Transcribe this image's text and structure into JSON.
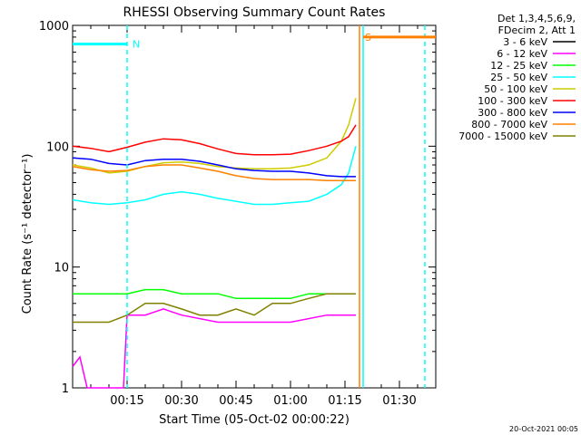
{
  "chart_data": {
    "type": "line",
    "title": "RHESSI Observing Summary Count Rates",
    "xlabel": "Start Time (05-Oct-02 00:00:22)",
    "ylabel": "Count Rate (s⁻¹ detector⁻¹)",
    "yscale": "log",
    "ylim": [
      1,
      1000
    ],
    "xlim_minutes": [
      0,
      100
    ],
    "x_ticks": [
      {
        "t": 15,
        "label": "00:15"
      },
      {
        "t": 30,
        "label": "00:30"
      },
      {
        "t": 45,
        "label": "00:45"
      },
      {
        "t": 60,
        "label": "01:00"
      },
      {
        "t": 75,
        "label": "01:15"
      },
      {
        "t": 90,
        "label": "01:30"
      }
    ],
    "y_ticks": [
      {
        "v": 1,
        "label": "1"
      },
      {
        "v": 10,
        "label": "10"
      },
      {
        "v": 100,
        "label": "100"
      },
      {
        "v": 1000,
        "label": "1000"
      }
    ],
    "legend_header": [
      "Det 1,3,4,5,6,9,",
      "FDecim 2, Att 1"
    ],
    "series": [
      {
        "name": "3 - 6 keV",
        "color": "#000000",
        "t": [
          0,
          10,
          17,
          25,
          35,
          45,
          55,
          65,
          70,
          75,
          78
        ],
        "values": [
          null,
          null,
          null,
          null,
          null,
          null,
          null,
          null,
          null,
          null,
          null
        ]
      },
      {
        "name": "6 - 12 keV",
        "color": "#ff00ff",
        "t": [
          0,
          2,
          4,
          14,
          15,
          20,
          25,
          30,
          40,
          50,
          60,
          70,
          75,
          78
        ],
        "values": [
          1.5,
          1.8,
          1,
          1,
          4,
          4,
          4.5,
          4,
          3.5,
          3.5,
          3.5,
          4,
          4,
          4
        ]
      },
      {
        "name": "12 - 25 keV",
        "color": "#00ff00",
        "t": [
          0,
          5,
          10,
          15,
          20,
          25,
          30,
          35,
          40,
          45,
          50,
          55,
          60,
          65,
          70,
          75,
          78
        ],
        "values": [
          6,
          6,
          6,
          6,
          6.5,
          6.5,
          6,
          6,
          6,
          5.5,
          5.5,
          5.5,
          5.5,
          6,
          6,
          6,
          6
        ]
      },
      {
        "name": "25 - 50 keV",
        "color": "#00ffff",
        "t": [
          0,
          5,
          10,
          15,
          20,
          25,
          30,
          35,
          40,
          45,
          50,
          55,
          60,
          65,
          70,
          74,
          76,
          78
        ],
        "values": [
          36,
          34,
          33,
          34,
          36,
          40,
          42,
          40,
          37,
          35,
          33,
          33,
          34,
          35,
          40,
          48,
          60,
          100
        ]
      },
      {
        "name": "50 - 100 keV",
        "color": "#cccc00",
        "t": [
          0,
          5,
          10,
          15,
          20,
          25,
          30,
          35,
          40,
          45,
          50,
          55,
          60,
          65,
          70,
          74,
          76,
          78
        ],
        "values": [
          70,
          66,
          60,
          62,
          68,
          73,
          74,
          72,
          68,
          66,
          65,
          65,
          66,
          70,
          80,
          110,
          150,
          250
        ]
      },
      {
        "name": "100 - 300 keV",
        "color": "#ff0000",
        "t": [
          0,
          5,
          10,
          15,
          20,
          25,
          30,
          35,
          40,
          45,
          50,
          55,
          60,
          65,
          70,
          74,
          76,
          78
        ],
        "values": [
          100,
          96,
          90,
          98,
          108,
          115,
          113,
          105,
          95,
          87,
          85,
          85,
          86,
          92,
          100,
          110,
          120,
          150
        ]
      },
      {
        "name": "300 - 800 keV",
        "color": "#0000ff",
        "t": [
          0,
          5,
          10,
          15,
          20,
          25,
          30,
          35,
          40,
          45,
          50,
          55,
          60,
          65,
          70,
          74,
          76,
          78
        ],
        "values": [
          80,
          78,
          72,
          70,
          76,
          78,
          78,
          75,
          70,
          65,
          63,
          62,
          62,
          60,
          57,
          56,
          56,
          56
        ]
      },
      {
        "name": "800 - 7000 keV",
        "color": "#ff8000",
        "t": [
          0,
          5,
          10,
          15,
          20,
          25,
          30,
          35,
          40,
          45,
          50,
          55,
          60,
          65,
          70,
          74,
          76,
          78
        ],
        "values": [
          68,
          64,
          62,
          63,
          68,
          70,
          70,
          66,
          62,
          57,
          54,
          53,
          53,
          53,
          52,
          52,
          52,
          52
        ]
      },
      {
        "name": "7000 - 15000 keV",
        "color": "#808000",
        "t": [
          0,
          5,
          10,
          15,
          20,
          25,
          30,
          35,
          40,
          45,
          50,
          55,
          60,
          65,
          70,
          75,
          78
        ],
        "values": [
          3.5,
          3.5,
          3.5,
          4,
          5,
          5,
          4.5,
          4,
          4,
          4.5,
          4,
          5,
          5,
          5.5,
          6,
          6,
          6
        ]
      }
    ],
    "annotations": [
      {
        "text": "N",
        "t": 15,
        "value": 700,
        "color": "#00ffff",
        "span": [
          0,
          15
        ]
      },
      {
        "text": "S",
        "t": 79,
        "value": 800,
        "color": "#ff8000",
        "span": [
          80,
          100
        ]
      }
    ],
    "vlines": [
      {
        "t": 15,
        "color": "#00ffff",
        "style": "dashed"
      },
      {
        "t": 79,
        "color": "#ff8000",
        "style": "solid"
      },
      {
        "t": 80,
        "color": "#00ffff",
        "style": "solid"
      },
      {
        "t": 97,
        "color": "#00ffff",
        "style": "dashed"
      }
    ],
    "footer": "20-Oct-2021 00:05"
  }
}
